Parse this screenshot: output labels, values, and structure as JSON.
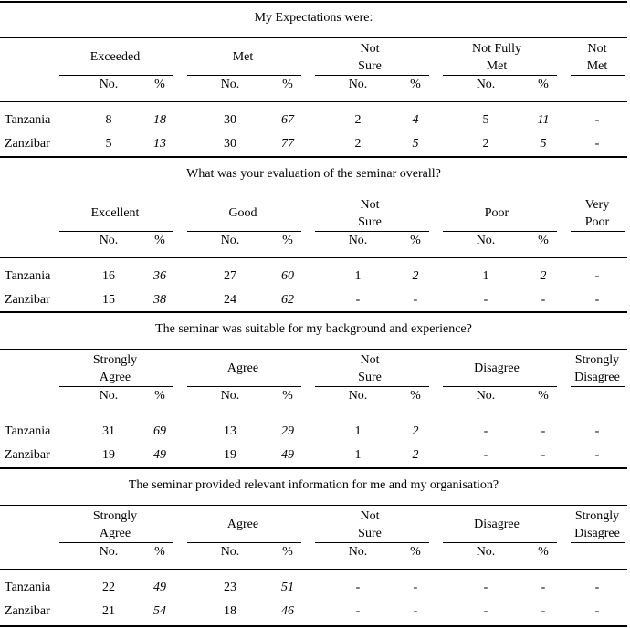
{
  "col_headers": {
    "no": "No.",
    "pct": "%"
  },
  "sections": [
    {
      "title": "My Expectations were:",
      "categories": [
        {
          "lines": [
            "Exceeded"
          ]
        },
        {
          "lines": [
            "Met"
          ]
        },
        {
          "lines": [
            "Not",
            "Sure"
          ]
        },
        {
          "lines": [
            "Not Fully",
            "Met"
          ]
        },
        {
          "lines": [
            "Not",
            "Met"
          ]
        }
      ],
      "rows": [
        {
          "label": "Tanzania",
          "cells": [
            [
              "8",
              "18"
            ],
            [
              "30",
              "67"
            ],
            [
              "2",
              "4"
            ],
            [
              "5",
              "11"
            ]
          ],
          "last": "-"
        },
        {
          "label": "Zanzibar",
          "cells": [
            [
              "5",
              "13"
            ],
            [
              "30",
              "77"
            ],
            [
              "2",
              "5"
            ],
            [
              "2",
              "5"
            ]
          ],
          "last": "-"
        }
      ]
    },
    {
      "title": "What was your evaluation of the seminar overall?",
      "categories": [
        {
          "lines": [
            "Excellent"
          ]
        },
        {
          "lines": [
            "Good"
          ]
        },
        {
          "lines": [
            "Not",
            "Sure"
          ]
        },
        {
          "lines": [
            "Poor"
          ]
        },
        {
          "lines": [
            "Very",
            "Poor"
          ]
        }
      ],
      "rows": [
        {
          "label": "Tanzania",
          "cells": [
            [
              "16",
              "36"
            ],
            [
              "27",
              "60"
            ],
            [
              "1",
              "2"
            ],
            [
              "1",
              "2"
            ]
          ],
          "last": "-"
        },
        {
          "label": "Zanzibar",
          "cells": [
            [
              "15",
              "38"
            ],
            [
              "24",
              "62"
            ],
            [
              "-",
              "-"
            ],
            [
              "-",
              "-"
            ]
          ],
          "last": "-"
        }
      ]
    },
    {
      "title": "The seminar was suitable for my background and experience?",
      "categories": [
        {
          "lines": [
            "Strongly",
            "Agree"
          ]
        },
        {
          "lines": [
            "Agree"
          ]
        },
        {
          "lines": [
            "Not",
            "Sure"
          ]
        },
        {
          "lines": [
            "Disagree"
          ]
        },
        {
          "lines": [
            "Strongly",
            "Disagree"
          ]
        }
      ],
      "rows": [
        {
          "label": "Tanzania",
          "cells": [
            [
              "31",
              "69"
            ],
            [
              "13",
              "29"
            ],
            [
              "1",
              "2"
            ],
            [
              "-",
              "-"
            ]
          ],
          "last": "-"
        },
        {
          "label": "Zanzibar",
          "cells": [
            [
              "19",
              "49"
            ],
            [
              "19",
              "49"
            ],
            [
              "1",
              "2"
            ],
            [
              "-",
              "-"
            ]
          ],
          "last": "-"
        }
      ]
    },
    {
      "title": "The seminar provided relevant information for me and my organisation?",
      "categories": [
        {
          "lines": [
            "Strongly",
            "Agree"
          ]
        },
        {
          "lines": [
            "Agree"
          ]
        },
        {
          "lines": [
            "Not",
            "Sure"
          ]
        },
        {
          "lines": [
            "Disagree"
          ]
        },
        {
          "lines": [
            "Strongly",
            "Disagree"
          ]
        }
      ],
      "rows": [
        {
          "label": "Tanzania",
          "cells": [
            [
              "22",
              "49"
            ],
            [
              "23",
              "51"
            ],
            [
              "-",
              "-"
            ],
            [
              "-",
              "-"
            ]
          ],
          "last": "-"
        },
        {
          "label": "Zanzibar",
          "cells": [
            [
              "21",
              "54"
            ],
            [
              "18",
              "46"
            ],
            [
              "-",
              "-"
            ],
            [
              "-",
              "-"
            ]
          ],
          "last": "-"
        }
      ]
    }
  ]
}
